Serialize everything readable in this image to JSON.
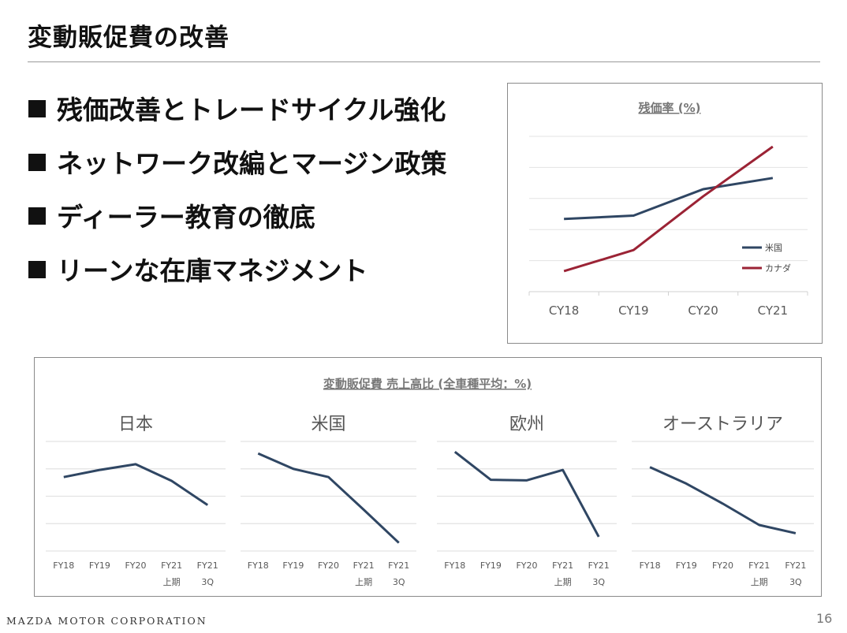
{
  "header": {
    "title": "変動販促費の改善"
  },
  "bullets": [
    "残価改善とトレードサイクル強化",
    "ネットワーク改編とマージン政策",
    "ディーラー教育の徹底",
    "リーンな在庫マネジメント"
  ],
  "footer": {
    "company": "MAZDA MOTOR CORPORATION",
    "page": "16"
  },
  "colors": {
    "us": "#2f4663",
    "canada": "#9b2335",
    "grid": "#e3e3e3",
    "label": "#595959"
  },
  "chart_data": [
    {
      "type": "line",
      "title": "残価率 (%)",
      "categories": [
        "CY18",
        "CY19",
        "CY20",
        "CY21"
      ],
      "ylim": [
        0,
        5
      ],
      "grid": true,
      "legend": "right",
      "series": [
        {
          "name": "米国",
          "color": "#2f4663",
          "values": [
            2.34,
            2.45,
            3.3,
            3.66
          ]
        },
        {
          "name": "カナダ",
          "color": "#9b2335",
          "values": [
            0.66,
            1.34,
            3.07,
            4.67
          ]
        }
      ]
    },
    {
      "type": "line",
      "title": "変動販促費 売上高比 (全車種平均：%)",
      "categories": [
        [
          "FY18",
          ""
        ],
        [
          "FY19",
          ""
        ],
        [
          "FY20",
          ""
        ],
        [
          "FY21",
          "上期"
        ],
        [
          "FY21",
          "3Q"
        ]
      ],
      "ylim": [
        0,
        4
      ],
      "grid": true,
      "panels": [
        {
          "name": "日本",
          "values": [
            2.7,
            2.96,
            3.17,
            2.56,
            1.68
          ]
        },
        {
          "name": "米国",
          "values": [
            3.56,
            3.0,
            2.7,
            1.51,
            0.3
          ]
        },
        {
          "name": "欧州",
          "values": [
            3.62,
            2.6,
            2.58,
            2.96,
            0.52
          ]
        },
        {
          "name": "オーストラリア",
          "values": [
            3.06,
            2.46,
            1.73,
            0.95,
            0.65
          ]
        }
      ]
    }
  ]
}
